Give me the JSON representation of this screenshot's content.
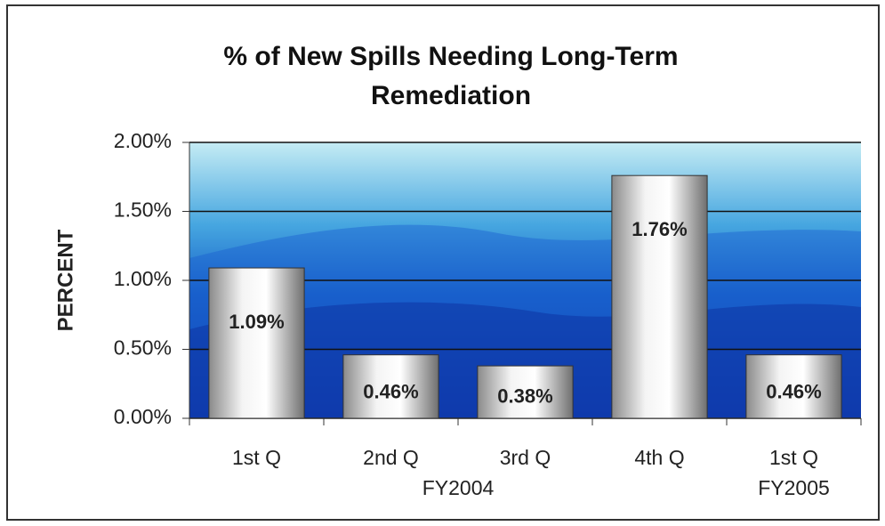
{
  "chart_data": {
    "type": "bar",
    "title": "% of New Spills Needing Long-Term Remediation",
    "y_label": "PERCENT",
    "categories": [
      "1st Q",
      "2nd Q",
      "3rd Q",
      "4th Q",
      "1st Q"
    ],
    "groups": [
      {
        "label": "FY2004",
        "span": 4
      },
      {
        "label": "FY2005",
        "span": 1
      }
    ],
    "values": [
      1.09,
      0.46,
      0.38,
      1.76,
      0.46
    ],
    "value_labels": [
      "1.09%",
      "0.46%",
      "0.38%",
      "1.76%",
      "0.46%"
    ],
    "ylim": [
      0,
      2
    ],
    "yticks": [
      {
        "value": 0,
        "label": "0.00%"
      },
      {
        "value": 0.5,
        "label": "0.50%"
      },
      {
        "value": 1,
        "label": "1.00%"
      },
      {
        "value": 1.5,
        "label": "1.50%"
      },
      {
        "value": 2,
        "label": "2.00%"
      }
    ],
    "grid": true
  }
}
